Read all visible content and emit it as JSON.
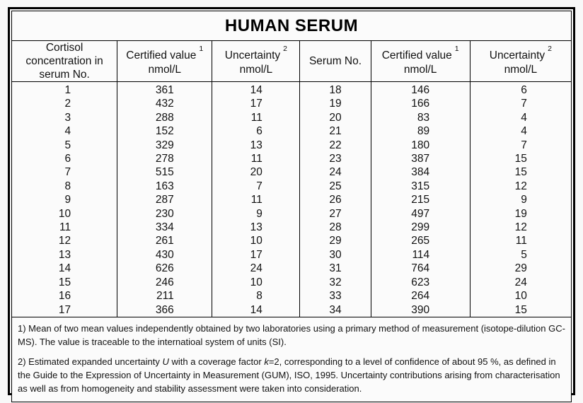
{
  "title": "HUMAN SERUM",
  "columns": [
    {
      "label": "Cortisol concentration in serum No.",
      "sup": "",
      "unit": ""
    },
    {
      "label": "Certified value",
      "sup": "1",
      "unit": "nmol/L"
    },
    {
      "label": "Uncertainty",
      "sup": "2",
      "unit": "nmol/L"
    },
    {
      "label": "Serum No.",
      "sup": "",
      "unit": ""
    },
    {
      "label": "Certified value",
      "sup": "1",
      "unit": "nmol/L"
    },
    {
      "label": "Uncertainty",
      "sup": "2",
      "unit": "nmol/L"
    }
  ],
  "table": {
    "rows": [
      [
        "1",
        "361",
        "14",
        "18",
        "146",
        "6"
      ],
      [
        "2",
        "432",
        "17",
        "19",
        "166",
        "7"
      ],
      [
        "3",
        "288",
        "11",
        "20",
        "83",
        "4"
      ],
      [
        "4",
        "152",
        "6",
        "21",
        "89",
        "4"
      ],
      [
        "5",
        "329",
        "13",
        "22",
        "180",
        "7"
      ],
      [
        "6",
        "278",
        "11",
        "23",
        "387",
        "15"
      ],
      [
        "7",
        "515",
        "20",
        "24",
        "384",
        "15"
      ],
      [
        "8",
        "163",
        "7",
        "25",
        "315",
        "12"
      ],
      [
        "9",
        "287",
        "11",
        "26",
        "215",
        "9"
      ],
      [
        "10",
        "230",
        "9",
        "27",
        "497",
        "19"
      ],
      [
        "11",
        "334",
        "13",
        "28",
        "299",
        "12"
      ],
      [
        "12",
        "261",
        "10",
        "29",
        "265",
        "11"
      ],
      [
        "13",
        "430",
        "17",
        "30",
        "114",
        "5"
      ],
      [
        "14",
        "626",
        "24",
        "31",
        "764",
        "29"
      ],
      [
        "15",
        "246",
        "10",
        "32",
        "623",
        "24"
      ],
      [
        "16",
        "211",
        "8",
        "33",
        "264",
        "10"
      ],
      [
        "17",
        "366",
        "14",
        "34",
        "390",
        "15"
      ]
    ]
  },
  "footnotes": [
    [
      {
        "t": "1) Mean of two mean values independently obtained by two laboratories using a primary method of measurement (isotope-dilution GC-MS). The value is traceable to the internatioal system of units (SI)."
      }
    ],
    [
      {
        "t": "2) Estimated expanded uncertainty "
      },
      {
        "t": "U",
        "i": true
      },
      {
        "t": " with a coverage factor "
      },
      {
        "t": "k",
        "i": true
      },
      {
        "t": "=2, corresponding to a level of confidence of about 95 %, as defined in the Guide to the Expression of Uncertainty in Measurement (GUM), ISO, 1995. Uncertainty contributions arising from characterisation as well as from homogeneity and stability assessment were taken into consideration."
      }
    ]
  ],
  "colors": {
    "border": "#000000",
    "background": "#f8f8f8",
    "text": "#111111"
  }
}
